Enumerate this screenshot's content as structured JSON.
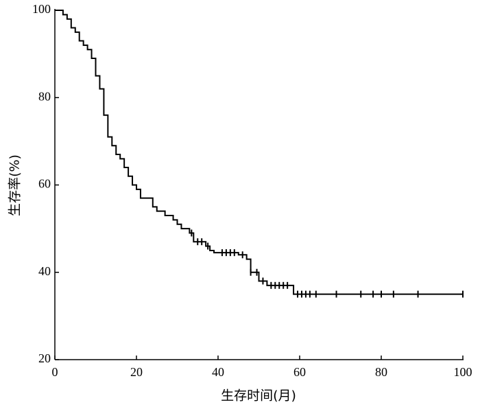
{
  "chart_data": {
    "type": "line",
    "step": "post",
    "x_label": "生存时间(月)",
    "y_label": "生存率(%)",
    "xlim": [
      0,
      100
    ],
    "xticks": [
      0,
      20,
      40,
      60,
      80,
      100
    ],
    "ylim": [
      20,
      100
    ],
    "yticks": [
      20,
      40,
      60,
      80,
      100
    ],
    "grid": false,
    "series": [
      {
        "color": "#000000",
        "x": [
          0,
          2,
          3,
          4,
          5,
          6,
          7,
          8,
          9,
          10,
          11,
          12,
          13,
          14,
          15,
          16,
          17,
          18,
          19,
          20,
          21,
          24,
          25,
          27,
          29,
          30,
          31,
          33,
          34,
          37,
          38,
          39,
          45,
          47,
          48,
          50,
          52,
          58.5,
          100
        ],
        "values": [
          100,
          99,
          98,
          96,
          95,
          93,
          92,
          91,
          89,
          85,
          82,
          76,
          71,
          69,
          67,
          66,
          64,
          62,
          60,
          59,
          57,
          55,
          54,
          53,
          52,
          51,
          50,
          49,
          47,
          46,
          45,
          44.5,
          44,
          43,
          40,
          38,
          37,
          35,
          35
        ]
      },
      {
        "color": "#000000",
        "marker": "censor",
        "x": [
          33.5,
          35,
          36,
          37.5,
          41,
          42,
          43,
          44,
          46,
          48,
          49.5,
          51,
          53,
          54,
          55,
          56,
          57,
          59.5,
          60.5,
          61.5,
          62.5,
          64,
          69,
          75,
          78,
          80,
          83,
          89,
          100
        ],
        "values": [
          49,
          47,
          47,
          46,
          44.5,
          44.5,
          44.5,
          44.5,
          44,
          40,
          40,
          38,
          37,
          37,
          37,
          37,
          37,
          35,
          35,
          35,
          35,
          35,
          35,
          35,
          35,
          35,
          35,
          35,
          35
        ]
      }
    ]
  }
}
